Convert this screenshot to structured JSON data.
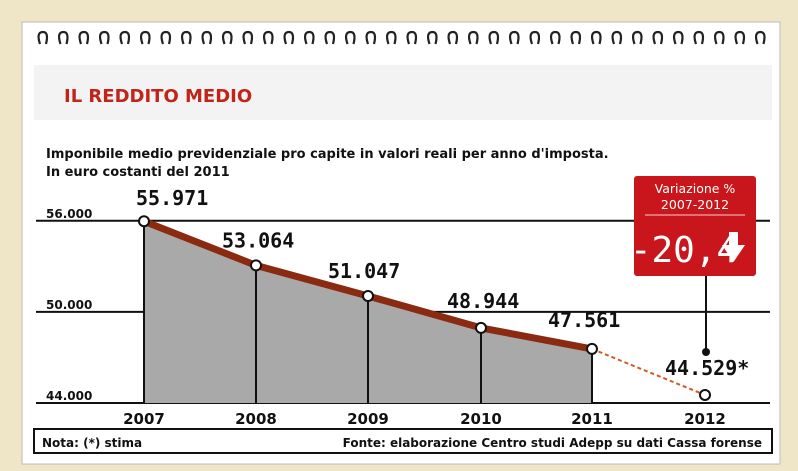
{
  "colors": {
    "background": "#efe6c8",
    "card": "#ffffff",
    "header_band": "#f3f3f3",
    "title_red": "#c0241a",
    "line": "#8a2a10",
    "area": "#a9a9a9",
    "badge_red": "#c8161c",
    "text": "#111111"
  },
  "header": {
    "title": "IL REDDITO MEDIO"
  },
  "chart_data": {
    "type": "area",
    "title": "IL REDDITO MEDIO",
    "subtitle": "Imponibile medio previdenziale pro capite in valori reali per anno d'imposta.",
    "unit_note": "In euro costanti del 2011",
    "x": [
      "2007",
      "2008",
      "2009",
      "2010",
      "2011",
      "2012"
    ],
    "series": [
      {
        "values": [
          55971,
          53064,
          51047,
          48944,
          47561,
          44529
        ],
        "labels": [
          "55.971",
          "53.064",
          "51.047",
          "48.944",
          "47.561",
          "44.529*"
        ]
      }
    ],
    "y_ticks": [
      {
        "value": 56000,
        "label": "56.000"
      },
      {
        "value": 50000,
        "label": "50.000"
      },
      {
        "value": 44000,
        "label": "44.000"
      }
    ],
    "ylim": [
      44000,
      57500
    ],
    "grid": true,
    "estimate_index": 5
  },
  "badge": {
    "label_line1": "Variazione %",
    "label_line2": "2007-2012",
    "value": "-20,4",
    "arrow_icon": "arrow-down-icon"
  },
  "footer": {
    "note": "Nota: (*) stima",
    "source": "Fonte: elaborazione Centro studi Adepp su dati Cassa forense"
  }
}
